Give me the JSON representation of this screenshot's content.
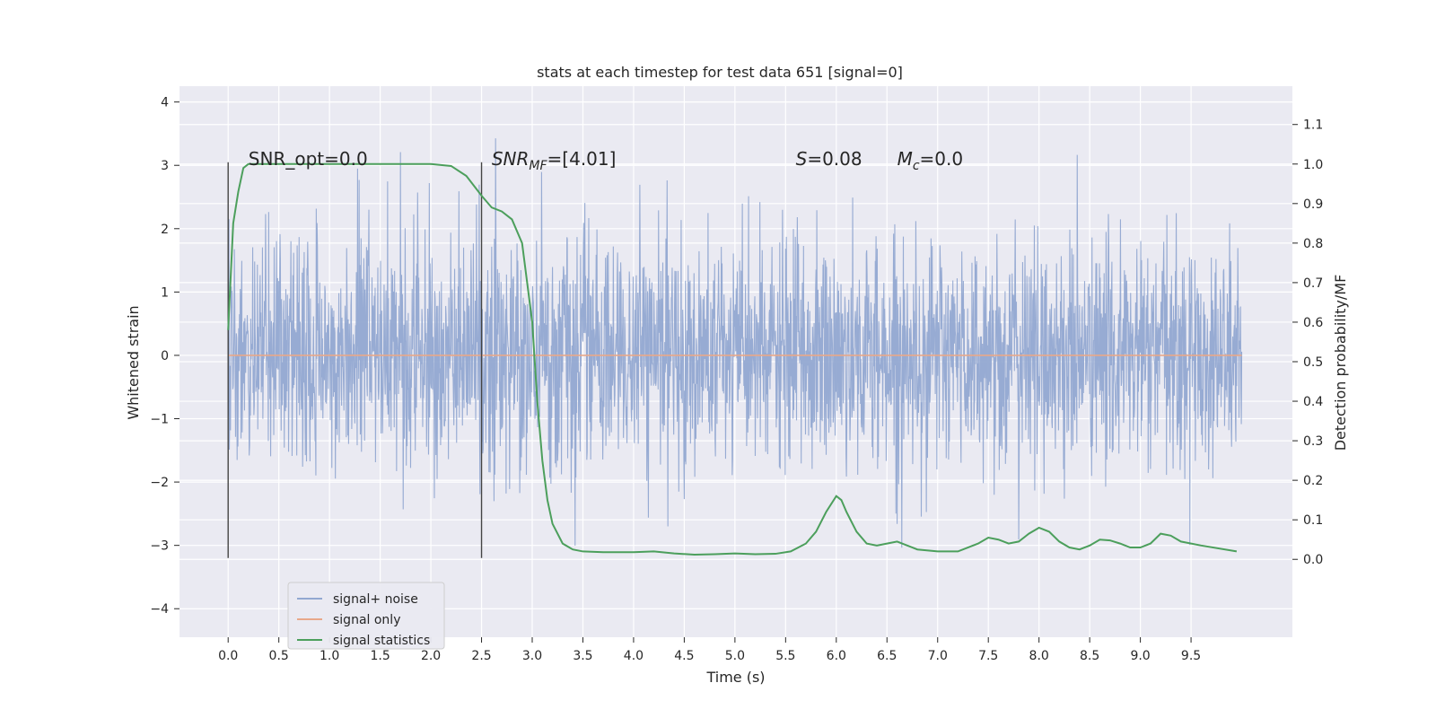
{
  "chart_data": {
    "type": "line",
    "title": "stats at each timestep for test data 651 [signal=0]",
    "xlabel": "Time (s)",
    "ylabel": "Whitened strain",
    "y2label": "Detection probability/MF",
    "xlim": [
      -0.48,
      10.5
    ],
    "ylim": [
      -4.45,
      4.25
    ],
    "y2lim": [
      -0.197,
      1.197
    ],
    "x_ticks": [
      "0.0",
      "0.5",
      "1.0",
      "1.5",
      "2.0",
      "2.5",
      "3.0",
      "3.5",
      "4.0",
      "4.5",
      "5.0",
      "5.5",
      "6.0",
      "6.5",
      "7.0",
      "7.5",
      "8.0",
      "8.5",
      "9.0",
      "9.5"
    ],
    "y_ticks": [
      "−4",
      "−3",
      "−2",
      "−1",
      "0",
      "1",
      "2",
      "3",
      "4"
    ],
    "y2_ticks": [
      "0.0",
      "0.1",
      "0.2",
      "0.3",
      "0.4",
      "0.5",
      "0.6",
      "0.7",
      "0.8",
      "0.9",
      "1.0",
      "1.1"
    ],
    "grid": true,
    "legend_position": "lower-left",
    "annotations": [
      {
        "text": "SNR_opt=0.0",
        "x": 0.2,
        "y": 3.0
      },
      {
        "text": "SNR",
        "sub": "MF",
        "suffix": "=[4.01]",
        "x": 2.6,
        "y": 3.0
      },
      {
        "text": "S",
        "suffix": "=0.08",
        "x": 5.6,
        "y": 3.0
      },
      {
        "text": "M",
        "sub": "c",
        "suffix": "=0.0",
        "x": 6.6,
        "y": 3.0
      }
    ],
    "vlines": [
      {
        "x": 0.0,
        "ymin": -3.2,
        "ymax": 3.05
      },
      {
        "x": 2.5,
        "ymin": -3.2,
        "ymax": 3.05
      }
    ],
    "series": [
      {
        "name": "signal+ noise",
        "axis": "left",
        "color": "#92a8d1",
        "style": "noise",
        "x_range": [
          0.0,
          10.0
        ],
        "approx_amplitude": 1.8
      },
      {
        "name": "signal only",
        "axis": "left",
        "color": "#e8a88a",
        "x": [
          0.0,
          10.0
        ],
        "y": [
          0.0,
          0.0
        ]
      },
      {
        "name": "signal statistics",
        "axis": "right",
        "color": "#4c9f5c",
        "x": [
          0.0,
          0.05,
          0.1,
          0.15,
          0.2,
          0.5,
          1.0,
          1.5,
          2.0,
          2.2,
          2.35,
          2.5,
          2.6,
          2.7,
          2.8,
          2.9,
          3.0,
          3.05,
          3.1,
          3.15,
          3.2,
          3.3,
          3.4,
          3.5,
          3.7,
          4.0,
          4.2,
          4.4,
          4.6,
          4.8,
          5.0,
          5.2,
          5.4,
          5.55,
          5.7,
          5.8,
          5.9,
          6.0,
          6.05,
          6.1,
          6.2,
          6.3,
          6.4,
          6.5,
          6.6,
          6.8,
          7.0,
          7.2,
          7.4,
          7.5,
          7.6,
          7.7,
          7.8,
          7.9,
          8.0,
          8.1,
          8.2,
          8.3,
          8.4,
          8.5,
          8.6,
          8.7,
          8.8,
          8.9,
          9.0,
          9.1,
          9.2,
          9.3,
          9.4,
          9.6,
          9.95
        ],
        "y": [
          0.58,
          0.85,
          0.93,
          0.99,
          1.0,
          1.0,
          1.0,
          1.0,
          1.0,
          0.995,
          0.97,
          0.92,
          0.89,
          0.88,
          0.86,
          0.8,
          0.6,
          0.4,
          0.25,
          0.15,
          0.09,
          0.04,
          0.025,
          0.02,
          0.018,
          0.018,
          0.02,
          0.015,
          0.012,
          0.013,
          0.015,
          0.013,
          0.014,
          0.02,
          0.04,
          0.07,
          0.12,
          0.16,
          0.15,
          0.12,
          0.07,
          0.04,
          0.035,
          0.04,
          0.045,
          0.025,
          0.02,
          0.02,
          0.04,
          0.055,
          0.05,
          0.04,
          0.045,
          0.065,
          0.08,
          0.07,
          0.045,
          0.03,
          0.025,
          0.035,
          0.05,
          0.048,
          0.04,
          0.03,
          0.03,
          0.04,
          0.065,
          0.06,
          0.045,
          0.035,
          0.02
        ]
      }
    ]
  }
}
